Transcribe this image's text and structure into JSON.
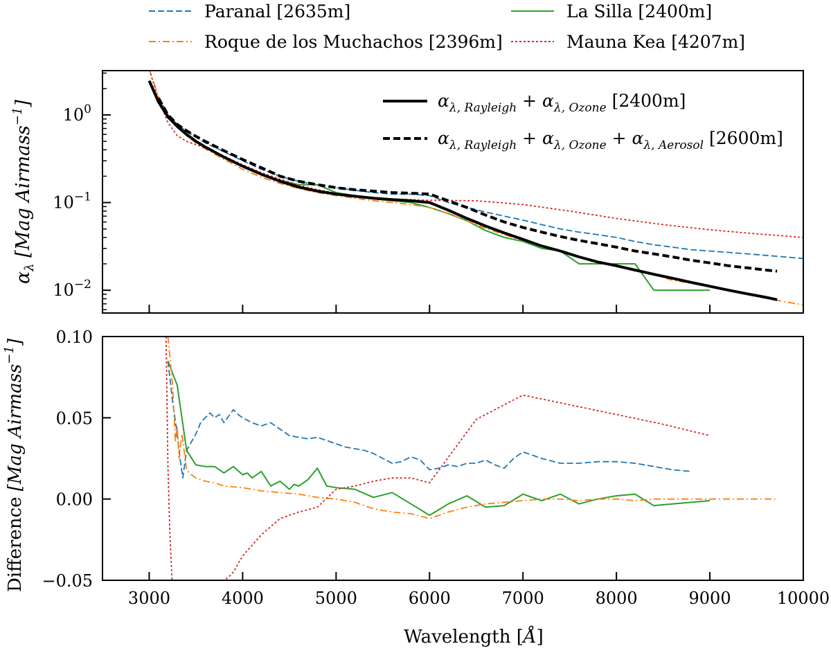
{
  "figure_legend": [
    {
      "name": "Paranal [2635m]",
      "color": "#1f77b4",
      "style": "dashed"
    },
    {
      "name": "La Silla [2400m]",
      "color": "#2ca02c",
      "style": "solid"
    },
    {
      "name": "Roque de los Muchachos [2396m]",
      "color": "#ff7f0e",
      "style": "dashdot"
    },
    {
      "name": "Mauna Kea [4207m]",
      "color": "#d62728",
      "style": "dotted"
    }
  ],
  "chart_data": [
    {
      "type": "line",
      "panel": "top",
      "ylabel": "α_λ [Mag Airmass^-1]",
      "ylabel_parts": {
        "sym": "α",
        "sub": "λ",
        "unit": "[Mag Airmass",
        "exp": "−1",
        "close": "]"
      },
      "xlim": [
        2500,
        10000
      ],
      "ylim": [
        0.0055,
        3.2
      ],
      "yscale": "log",
      "yticks": [
        {
          "value": 1,
          "mant": "10",
          "exp": "0"
        },
        {
          "value": 0.1,
          "mant": "10",
          "exp": "−1"
        },
        {
          "value": 0.01,
          "mant": "10",
          "exp": "−2"
        }
      ],
      "legend": [
        {
          "label": "α_{λ,Rayleigh} + α_{λ,Ozone} [2400m]",
          "parts": [
            [
              "α",
              "n"
            ],
            [
              "λ, Rayleigh",
              "s"
            ],
            [
              " + ",
              "n"
            ],
            [
              "α",
              "n"
            ],
            [
              "λ, Ozone",
              "s"
            ],
            [
              " [2400m]",
              "u"
            ]
          ],
          "style": "solid"
        },
        {
          "label": "α_{λ,Rayleigh} + α_{λ,Ozone} + α_{λ,Aerosol} [2600m]",
          "parts": [
            [
              "α",
              "n"
            ],
            [
              "λ, Rayleigh",
              "s"
            ],
            [
              " + ",
              "n"
            ],
            [
              "α",
              "n"
            ],
            [
              "λ, Ozone",
              "s"
            ],
            [
              " + ",
              "n"
            ],
            [
              "α",
              "n"
            ],
            [
              "λ, Aerosol",
              "s"
            ],
            [
              " [2600m]",
              "u"
            ]
          ],
          "style": "dashed"
        }
      ],
      "series": [
        {
          "name": "Paranal [2635m]",
          "color": "#1f77b4",
          "style": "dashed",
          "x": [
            3100,
            3200,
            3300,
            3400,
            3500,
            3600,
            3800,
            4000,
            4200,
            4400,
            4600,
            4800,
            5000,
            5200,
            5400,
            5600,
            5800,
            6000,
            6200,
            6400,
            6600,
            6800,
            7000,
            7200,
            7400,
            7600,
            7800,
            8000,
            8200,
            8400,
            8600,
            8800,
            9000,
            9200,
            9400,
            9600,
            9800,
            10000
          ],
          "y": [
            1.6,
            1.0,
            0.78,
            0.65,
            0.56,
            0.48,
            0.38,
            0.3,
            0.24,
            0.2,
            0.175,
            0.158,
            0.148,
            0.138,
            0.13,
            0.125,
            0.125,
            0.12,
            0.1,
            0.088,
            0.078,
            0.07,
            0.063,
            0.056,
            0.05,
            0.046,
            0.043,
            0.04,
            0.036,
            0.033,
            0.031,
            0.029,
            0.028,
            0.027,
            0.026,
            0.025,
            0.024,
            0.023
          ]
        },
        {
          "name": "La Silla [2400m]",
          "color": "#2ca02c",
          "style": "solid",
          "x": [
            3100,
            3200,
            3300,
            3400,
            3500,
            3600,
            3800,
            4000,
            4200,
            4400,
            4600,
            4800,
            5000,
            5200,
            5400,
            5600,
            5800,
            6000,
            6200,
            6400,
            6600,
            6800,
            7000,
            7200,
            7400,
            7600,
            7800,
            8000,
            8200,
            8400,
            8600,
            8800,
            9000
          ],
          "y": [
            1.5,
            0.95,
            0.72,
            0.58,
            0.5,
            0.42,
            0.33,
            0.26,
            0.21,
            0.18,
            0.16,
            0.16,
            0.13,
            0.12,
            0.11,
            0.105,
            0.1,
            0.088,
            0.075,
            0.062,
            0.048,
            0.04,
            0.036,
            0.03,
            0.028,
            0.02,
            0.02,
            0.02,
            0.02,
            0.01,
            0.01,
            0.01,
            0.01
          ]
        },
        {
          "name": "Roque de los Muchachos [2396m]",
          "color": "#ff7f0e",
          "style": "dashdot",
          "x": [
            3000,
            3100,
            3200,
            3300,
            3400,
            3500,
            3600,
            3800,
            4000,
            4200,
            4400,
            4600,
            4800,
            5000,
            5200,
            5400,
            5600,
            5800,
            6000,
            6200,
            6400,
            6600,
            6800,
            7000,
            7200,
            7400,
            7600,
            7800,
            8000,
            8200,
            8400,
            8600,
            8800,
            9000,
            9200,
            9400,
            9600,
            9800,
            10000
          ],
          "y": [
            3.3,
            1.6,
            0.95,
            0.72,
            0.58,
            0.48,
            0.41,
            0.31,
            0.24,
            0.195,
            0.165,
            0.145,
            0.13,
            0.12,
            0.112,
            0.105,
            0.1,
            0.095,
            0.088,
            0.075,
            0.062,
            0.051,
            0.043,
            0.037,
            0.032,
            0.028,
            0.024,
            0.021,
            0.019,
            0.017,
            0.015,
            0.013,
            0.012,
            0.011,
            0.0098,
            0.0089,
            0.0081,
            0.0074,
            0.0068
          ]
        },
        {
          "name": "Mauna Kea [4207m]",
          "color": "#d62728",
          "style": "dotted",
          "x": [
            3000,
            3100,
            3200,
            3300,
            3400,
            3600,
            3800,
            4000,
            4200,
            4400,
            4600,
            4800,
            5000,
            5200,
            5400,
            5600,
            5800,
            6000,
            6500,
            7000,
            7500,
            8000,
            8500,
            9000,
            9500,
            10000
          ],
          "y": [
            3.3,
            1.5,
            0.82,
            0.58,
            0.5,
            0.42,
            0.34,
            0.27,
            0.22,
            0.185,
            0.158,
            0.14,
            0.128,
            0.12,
            0.114,
            0.11,
            0.108,
            0.106,
            0.105,
            0.095,
            0.08,
            0.066,
            0.056,
            0.049,
            0.044,
            0.04
          ]
        },
        {
          "name": "",
          "color": "#000000",
          "style": "solid-thick",
          "x": [
            3000,
            3100,
            3200,
            3300,
            3400,
            3500,
            3600,
            3800,
            4000,
            4200,
            4400,
            4600,
            4800,
            5000,
            5200,
            5400,
            5600,
            5800,
            6000,
            6200,
            6400,
            6600,
            6800,
            7000,
            7200,
            7400,
            7600,
            7800,
            8000,
            8200,
            8400,
            8600,
            8800,
            9000,
            9200,
            9400,
            9600,
            9720
          ],
          "y": [
            2.45,
            1.4,
            0.95,
            0.74,
            0.6,
            0.5,
            0.43,
            0.33,
            0.26,
            0.21,
            0.175,
            0.15,
            0.135,
            0.125,
            0.118,
            0.112,
            0.108,
            0.105,
            0.1,
            0.082,
            0.066,
            0.054,
            0.045,
            0.038,
            0.032,
            0.028,
            0.024,
            0.021,
            0.019,
            0.017,
            0.0152,
            0.0137,
            0.0123,
            0.0111,
            0.01,
            0.0091,
            0.0083,
            0.0078
          ]
        },
        {
          "name": "",
          "color": "#000000",
          "style": "dashed-thick",
          "x": [
            3100,
            3200,
            3300,
            3400,
            3500,
            3600,
            3800,
            4000,
            4200,
            4400,
            4600,
            4800,
            5000,
            5200,
            5400,
            5600,
            5800,
            6000,
            6200,
            6400,
            6600,
            6800,
            7000,
            7200,
            7400,
            7600,
            7800,
            8000,
            8200,
            8400,
            8600,
            8800,
            9000,
            9200,
            9400,
            9600,
            9720
          ],
          "y": [
            1.55,
            1.0,
            0.78,
            0.66,
            0.57,
            0.5,
            0.39,
            0.31,
            0.25,
            0.2,
            0.175,
            0.16,
            0.148,
            0.14,
            0.135,
            0.13,
            0.128,
            0.125,
            0.105,
            0.088,
            0.072,
            0.06,
            0.052,
            0.046,
            0.041,
            0.037,
            0.034,
            0.031,
            0.028,
            0.026,
            0.024,
            0.022,
            0.0205,
            0.019,
            0.018,
            0.017,
            0.0165
          ]
        }
      ]
    },
    {
      "type": "line",
      "panel": "bottom",
      "xlabel": "Wavelength [Å]",
      "xlabel_parts": {
        "text": "Wavelength ",
        "open": "[",
        "unit": "Å",
        "close": "]"
      },
      "ylabel": "Difference [Mag Airmass^-1]",
      "ylabel_parts": {
        "text": "Difference ",
        "unit": "[Mag Airmass",
        "exp": "−1",
        "close": "]"
      },
      "xlim": [
        2500,
        10000
      ],
      "ylim": [
        -0.05,
        0.1
      ],
      "xticks": [
        3000,
        4000,
        5000,
        6000,
        7000,
        8000,
        9000,
        10000
      ],
      "yticks": [
        {
          "value": 0.1,
          "label": "0.10"
        },
        {
          "value": 0.05,
          "label": "0.05"
        },
        {
          "value": 0.0,
          "label": "0.00"
        },
        {
          "value": -0.05,
          "label": "−0.05"
        }
      ],
      "series": [
        {
          "name": "Paranal [2635m]",
          "color": "#1f77b4",
          "style": "dashed",
          "x": [
            3200,
            3250,
            3300,
            3330,
            3360,
            3400,
            3450,
            3500,
            3550,
            3600,
            3650,
            3700,
            3750,
            3800,
            3850,
            3900,
            3950,
            4000,
            4100,
            4200,
            4300,
            4400,
            4500,
            4600,
            4700,
            4800,
            4900,
            5000,
            5100,
            5200,
            5300,
            5400,
            5500,
            5600,
            5700,
            5800,
            5900,
            6000,
            6100,
            6200,
            6300,
            6400,
            6500,
            6600,
            6700,
            6800,
            6900,
            7000,
            7200,
            7400,
            7600,
            7800,
            8000,
            8200,
            8400,
            8600,
            8800
          ],
          "y": [
            0.085,
            0.06,
            0.04,
            0.025,
            0.013,
            0.03,
            0.035,
            0.04,
            0.047,
            0.05,
            0.053,
            0.05,
            0.052,
            0.047,
            0.051,
            0.055,
            0.052,
            0.05,
            0.047,
            0.045,
            0.047,
            0.043,
            0.039,
            0.038,
            0.037,
            0.038,
            0.036,
            0.034,
            0.032,
            0.031,
            0.03,
            0.028,
            0.025,
            0.022,
            0.023,
            0.026,
            0.024,
            0.018,
            0.019,
            0.021,
            0.02,
            0.022,
            0.022,
            0.024,
            0.021,
            0.019,
            0.025,
            0.029,
            0.025,
            0.022,
            0.022,
            0.023,
            0.023,
            0.022,
            0.02,
            0.018,
            0.017
          ]
        },
        {
          "name": "La Silla [2400m]",
          "color": "#2ca02c",
          "style": "solid",
          "x": [
            3200,
            3300,
            3350,
            3400,
            3500,
            3600,
            3700,
            3800,
            3900,
            4000,
            4050,
            4100,
            4200,
            4300,
            4400,
            4500,
            4550,
            4600,
            4700,
            4800,
            4900,
            5000,
            5200,
            5400,
            5600,
            5800,
            6000,
            6200,
            6400,
            6600,
            6800,
            7000,
            7200,
            7400,
            7600,
            7800,
            8000,
            8200,
            8400,
            8600,
            8800,
            9000
          ],
          "y": [
            0.085,
            0.07,
            0.05,
            0.03,
            0.021,
            0.02,
            0.02,
            0.016,
            0.02,
            0.015,
            0.016,
            0.013,
            0.017,
            0.008,
            0.011,
            0.006,
            0.009,
            0.008,
            0.012,
            0.019,
            0.008,
            0.007,
            0.006,
            0.001,
            0.004,
            -0.003,
            -0.01,
            -0.003,
            0.002,
            -0.005,
            -0.004,
            0.003,
            -0.001,
            0.003,
            -0.003,
            0.0,
            0.002,
            0.003,
            -0.004,
            -0.003,
            -0.002,
            -0.001
          ]
        },
        {
          "name": "Roque de los Muchachos [2396m]",
          "color": "#ff7f0e",
          "style": "dashdot",
          "x": [
            3200,
            3250,
            3280,
            3300,
            3320,
            3350,
            3400,
            3450,
            3500,
            3600,
            3700,
            3800,
            4000,
            4200,
            4400,
            4600,
            4800,
            5000,
            5200,
            5400,
            5600,
            5800,
            6000,
            6200,
            6400,
            6600,
            6800,
            7000,
            7200,
            7400,
            7600,
            7800,
            8000,
            8200,
            8400,
            8600,
            8800,
            9000,
            9200,
            9400,
            9600,
            9700
          ],
          "y": [
            0.1,
            0.07,
            0.035,
            0.045,
            0.025,
            0.04,
            0.018,
            0.015,
            0.013,
            0.011,
            0.01,
            0.008,
            0.007,
            0.005,
            0.004,
            0.003,
            0.001,
            0.0,
            -0.002,
            -0.006,
            -0.008,
            -0.009,
            -0.012,
            -0.008,
            -0.005,
            -0.003,
            -0.002,
            -0.001,
            0.0,
            0.0,
            -0.001,
            0.0,
            0.0,
            -0.001,
            0.0,
            0.0,
            0.0,
            0.0,
            0.0,
            0.0,
            0.0,
            0.0
          ]
        },
        {
          "name": "Mauna Kea [4207m]",
          "color": "#d62728",
          "style": "dotted",
          "x": [
            3180,
            3200,
            3220,
            3240,
            3250,
            3600,
            3800,
            3850,
            3900,
            4000,
            4200,
            4400,
            4600,
            4800,
            5000,
            5200,
            5400,
            5600,
            5800,
            6000,
            6500,
            7000,
            7500,
            8000,
            8500,
            9000
          ],
          "y": [
            0.1,
            0.02,
            -0.02,
            -0.045,
            -0.06,
            -0.06,
            -0.05,
            -0.048,
            -0.045,
            -0.035,
            -0.022,
            -0.012,
            -0.008,
            -0.005,
            0.006,
            0.008,
            0.011,
            0.013,
            0.013,
            0.01,
            0.049,
            0.064,
            0.058,
            0.052,
            0.046,
            0.039
          ]
        }
      ]
    }
  ]
}
